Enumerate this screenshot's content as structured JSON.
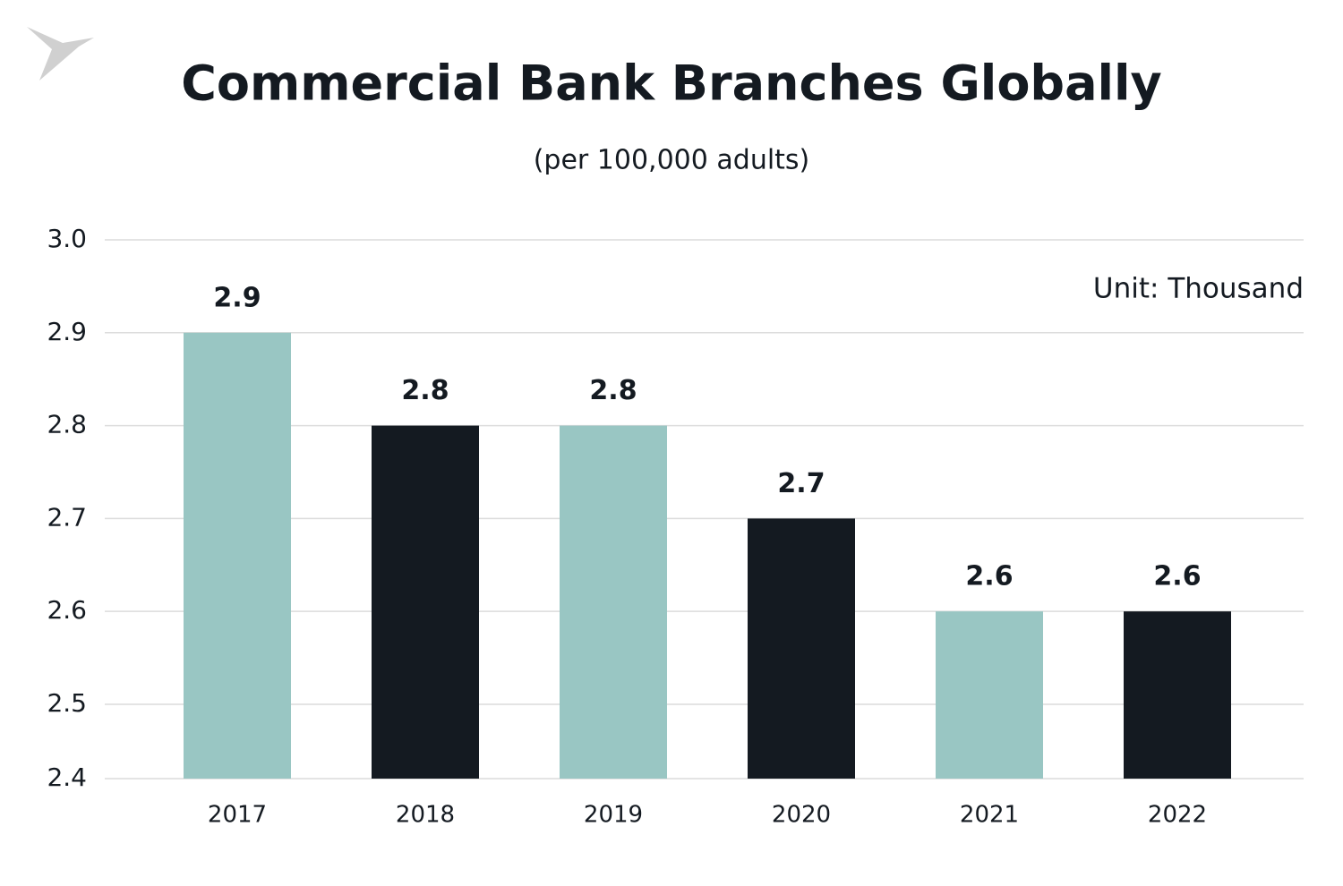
{
  "chart_data": {
    "type": "bar",
    "title": "Commercial Bank Branches Globally",
    "subtitle": "(per 100,000 adults)",
    "annotation": "Unit: Thousand",
    "categories": [
      "2017",
      "2018",
      "2019",
      "2020",
      "2021",
      "2022"
    ],
    "values": [
      2.9,
      2.8,
      2.8,
      2.7,
      2.6,
      2.6
    ],
    "colors": [
      "#99c6c3",
      "#141a21",
      "#99c6c3",
      "#141a21",
      "#99c6c3",
      "#141a21"
    ],
    "ylim": [
      2.42,
      3.0
    ],
    "yticks": [
      {
        "value": 2.42,
        "label": "2.4"
      },
      2.5,
      2.6,
      2.7,
      2.8,
      2.9,
      {
        "value": 3.0,
        "label": "3.0"
      }
    ],
    "grid": true
  }
}
